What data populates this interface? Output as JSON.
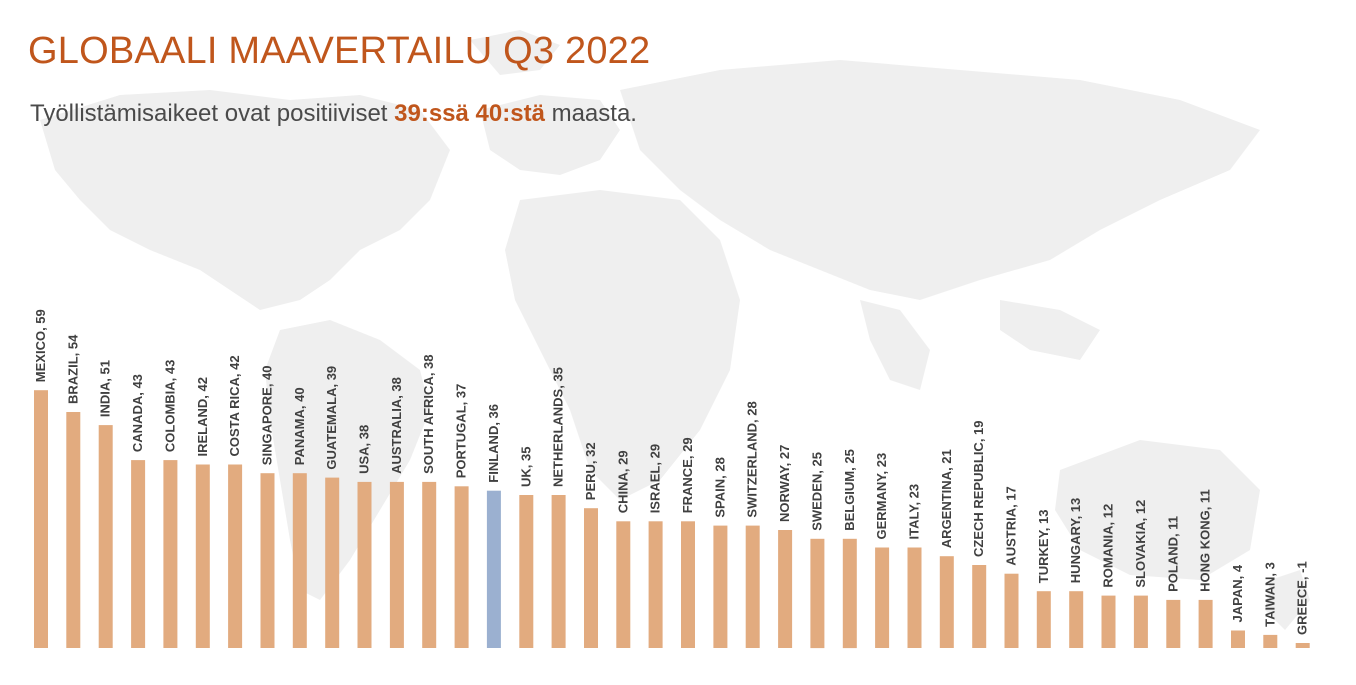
{
  "title": "GLOBAALI MAAVERTAILU Q3 2022",
  "subtitle": {
    "prefix": "Työllistämisaikeet ovat positiiviset ",
    "highlight_1": "39:ssä",
    "middle": " ",
    "highlight_2": "40:stä",
    "suffix": " maasta."
  },
  "colors": {
    "title": "#c0561c",
    "bar": "#e2ab7f",
    "highlight_bar": "#9bb0d0",
    "label": "#404040",
    "map": "#efefef"
  },
  "chart_data": {
    "type": "bar",
    "categories": [
      "MEXICO",
      "BRAZIL",
      "INDIA",
      "CANADA",
      "COLOMBIA",
      "IRELAND",
      "COSTA RICA",
      "SINGAPORE",
      "PANAMA",
      "GUATEMALA",
      "USA",
      "AUSTRALIA",
      "SOUTH AFRICA",
      "PORTUGAL",
      "FINLAND",
      "UK",
      "NETHERLANDS",
      "PERU",
      "CHINA",
      "ISRAEL",
      "FRANCE",
      "SPAIN",
      "SWITZERLAND",
      "NORWAY",
      "SWEDEN",
      "BELGIUM",
      "GERMANY",
      "ITALY",
      "ARGENTINA",
      "CZECH REPUBLIC",
      "AUSTRIA",
      "TURKEY",
      "HUNGARY",
      "ROMANIA",
      "SLOVAKIA",
      "POLAND",
      "HONG KONG",
      "JAPAN",
      "TAIWAN",
      "GREECE"
    ],
    "values": [
      59,
      54,
      51,
      43,
      43,
      42,
      42,
      40,
      40,
      39,
      38,
      38,
      38,
      37,
      36,
      35,
      35,
      32,
      29,
      29,
      29,
      28,
      28,
      27,
      25,
      25,
      23,
      23,
      21,
      19,
      17,
      13,
      13,
      12,
      12,
      11,
      11,
      4,
      3,
      -1
    ],
    "labels": [
      "MEXICO, 59",
      "BRAZIL, 54",
      "INDIA, 51",
      "CANADA, 43",
      "COLOMBIA, 43",
      "IRELAND, 42",
      "COSTA RICA, 42",
      "SINGAPORE, 40",
      "PANAMA, 40",
      "GUATEMALA, 39",
      "USA, 38",
      "AUSTRALIA, 38",
      "SOUTH AFRICA, 38",
      "PORTUGAL, 37",
      "FINLAND, 36",
      "UK, 35",
      "NETHERLANDS, 35",
      "PERU, 32",
      "CHINA, 29",
      "ISRAEL, 29",
      "FRANCE, 29",
      "SPAIN, 28",
      "SWITZERLAND, 28",
      "NORWAY, 27",
      "SWEDEN, 25",
      "BELGIUM, 25",
      "GERMANY, 23",
      "ITALY, 23",
      "ARGENTINA, 21",
      "CZECH REPUBLIC, 19",
      "AUSTRIA, 17",
      "TURKEY, 13",
      "HUNGARY, 13",
      "ROMANIA, 12",
      "SLOVAKIA, 12",
      "POLAND, 11",
      "HONG KONG, 11",
      "JAPAN, 4",
      "TAIWAN, 3",
      "GREECE, -1"
    ],
    "highlight": "FINLAND",
    "ylim": [
      -1,
      59
    ],
    "grid": false,
    "legend": "none"
  }
}
